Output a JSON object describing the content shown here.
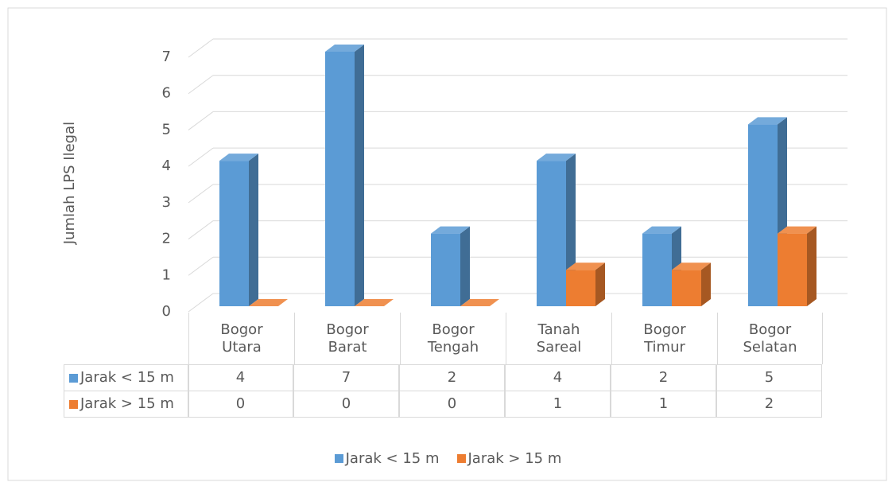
{
  "chart_data": {
    "type": "bar3d",
    "y_label": "Jumlah LPS Ilegal",
    "categories": [
      "Bogor Utara",
      "Bogor Barat",
      "Bogor Tengah",
      "Tanah Sareal",
      "Bogor Timur",
      "Bogor Selatan"
    ],
    "series": [
      {
        "name": "Jarak < 15 m",
        "color": "#5b9bd5",
        "values": [
          4,
          7,
          2,
          4,
          2,
          5
        ]
      },
      {
        "name": "Jarak > 15 m",
        "color": "#ed7d31",
        "values": [
          0,
          0,
          0,
          1,
          1,
          2
        ]
      }
    ],
    "ylim": [
      0,
      7
    ],
    "yticks": [
      0,
      1,
      2,
      3,
      4,
      5,
      6,
      7
    ],
    "grid": true,
    "legend": "bottom",
    "data_table": true
  }
}
